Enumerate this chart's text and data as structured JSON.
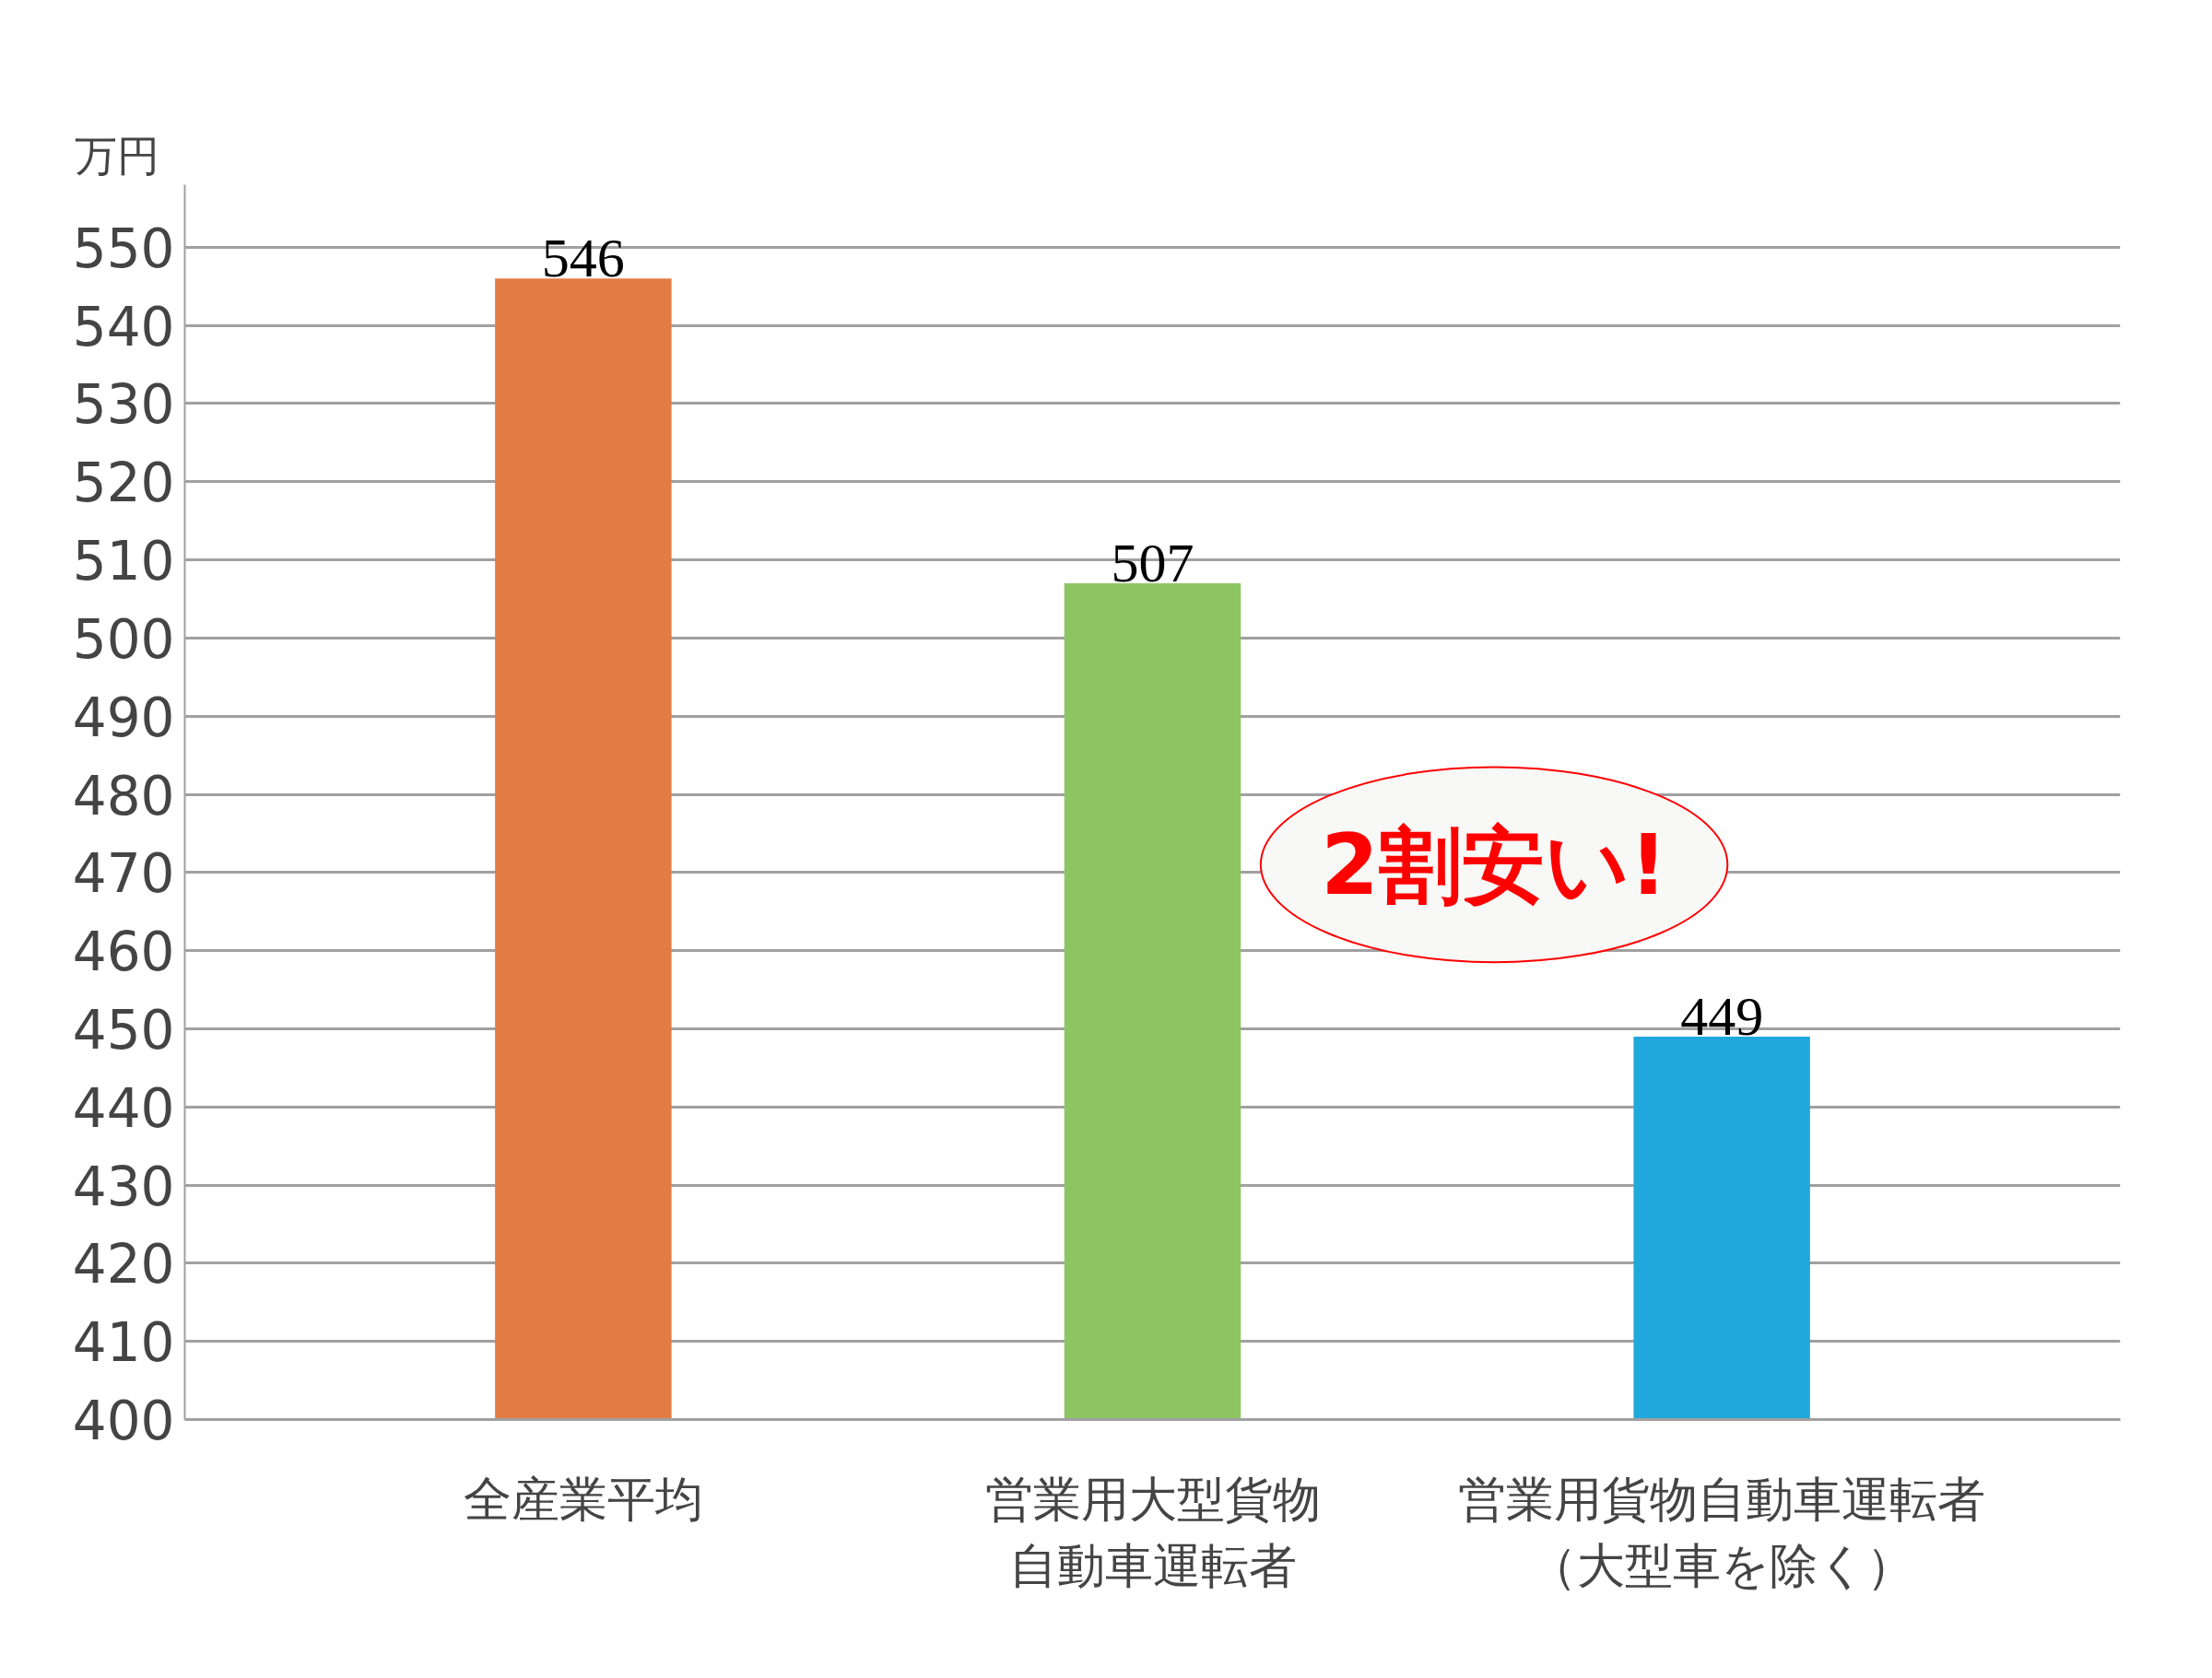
{
  "chart_data": {
    "type": "bar",
    "ylabel": "万円",
    "categories": [
      "全産業平均",
      "営業用大型貨物自動車運転者",
      "営業用貨物自動車運転者（大型車を除く）"
    ],
    "values": [
      546,
      507,
      449
    ],
    "colors": [
      "#e37b45",
      "#8cc561",
      "#20a8dc"
    ],
    "ylim": [
      400,
      558
    ],
    "yticks": [
      400,
      410,
      420,
      430,
      440,
      450,
      460,
      470,
      480,
      490,
      500,
      510,
      520,
      530,
      540,
      550
    ],
    "grid": "y",
    "data_labels": true,
    "annotations": [
      "2割安い!"
    ]
  }
}
